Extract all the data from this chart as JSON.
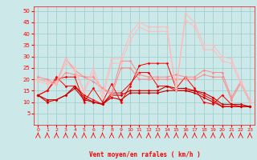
{
  "x": [
    0,
    1,
    2,
    3,
    4,
    5,
    6,
    7,
    8,
    9,
    10,
    11,
    12,
    13,
    14,
    15,
    16,
    17,
    18,
    19,
    20,
    21,
    22,
    23
  ],
  "series": [
    {
      "color": "#ff0000",
      "lw": 0.7,
      "marker": "D",
      "ms": 1.8,
      "y": [
        13,
        15,
        20,
        21,
        21,
        10,
        16,
        10,
        18,
        10,
        17,
        26,
        27,
        27,
        27,
        16,
        21,
        16,
        10,
        9,
        13,
        9,
        8,
        8
      ]
    },
    {
      "color": "#ff0000",
      "lw": 0.7,
      "marker": "D",
      "ms": 1.8,
      "y": [
        13,
        15,
        21,
        17,
        17,
        13,
        11,
        9,
        14,
        14,
        18,
        23,
        23,
        17,
        17,
        15,
        15,
        15,
        13,
        11,
        8,
        8,
        8,
        8
      ]
    },
    {
      "color": "#cc0000",
      "lw": 0.8,
      "marker": "D",
      "ms": 1.8,
      "y": [
        13,
        11,
        11,
        13,
        17,
        12,
        10,
        9,
        13,
        13,
        15,
        15,
        15,
        15,
        17,
        16,
        16,
        15,
        14,
        12,
        9,
        9,
        9,
        8
      ]
    },
    {
      "color": "#cc0000",
      "lw": 0.8,
      "marker": "D",
      "ms": 1.8,
      "y": [
        13,
        10,
        11,
        13,
        16,
        11,
        10,
        9,
        12,
        11,
        14,
        14,
        14,
        14,
        15,
        15,
        15,
        14,
        12,
        10,
        8,
        8,
        8,
        8
      ]
    },
    {
      "color": "#ff8888",
      "lw": 0.7,
      "marker": "D",
      "ms": 1.8,
      "y": [
        20,
        19,
        18,
        29,
        24,
        21,
        21,
        16,
        14,
        28,
        28,
        22,
        21,
        21,
        21,
        22,
        21,
        21,
        24,
        23,
        23,
        12,
        19,
        11
      ]
    },
    {
      "color": "#ff8888",
      "lw": 0.7,
      "marker": "D",
      "ms": 1.8,
      "y": [
        21,
        20,
        18,
        23,
        22,
        21,
        19,
        16,
        13,
        25,
        25,
        20,
        20,
        20,
        20,
        20,
        20,
        20,
        22,
        21,
        21,
        11,
        18,
        10
      ]
    },
    {
      "color": "#ffbbbb",
      "lw": 0.7,
      "marker": "D",
      "ms": 1.8,
      "y": [
        20,
        19,
        19,
        29,
        25,
        15,
        25,
        14,
        29,
        29,
        40,
        45,
        43,
        43,
        43,
        16,
        49,
        45,
        35,
        35,
        30,
        29,
        19,
        11
      ]
    },
    {
      "color": "#ffbbbb",
      "lw": 0.7,
      "marker": "D",
      "ms": 1.8,
      "y": [
        19,
        18,
        18,
        27,
        24,
        14,
        23,
        12,
        27,
        27,
        37,
        43,
        41,
        41,
        41,
        15,
        46,
        43,
        33,
        33,
        28,
        27,
        18,
        10
      ]
    }
  ],
  "xlabel": "Vent moyen/en rafales ( km/h )",
  "xlim": [
    -0.5,
    23.5
  ],
  "ylim": [
    0,
    52
  ],
  "yticks": [
    5,
    10,
    15,
    20,
    25,
    30,
    35,
    40,
    45,
    50
  ],
  "xticks": [
    0,
    1,
    2,
    3,
    4,
    5,
    6,
    7,
    8,
    9,
    10,
    11,
    12,
    13,
    14,
    15,
    16,
    17,
    18,
    19,
    20,
    21,
    22,
    23
  ],
  "bg_color": "#cce8e8",
  "grid_color": "#99cccc",
  "tick_color": "#ff0000",
  "label_color": "#ff0000"
}
